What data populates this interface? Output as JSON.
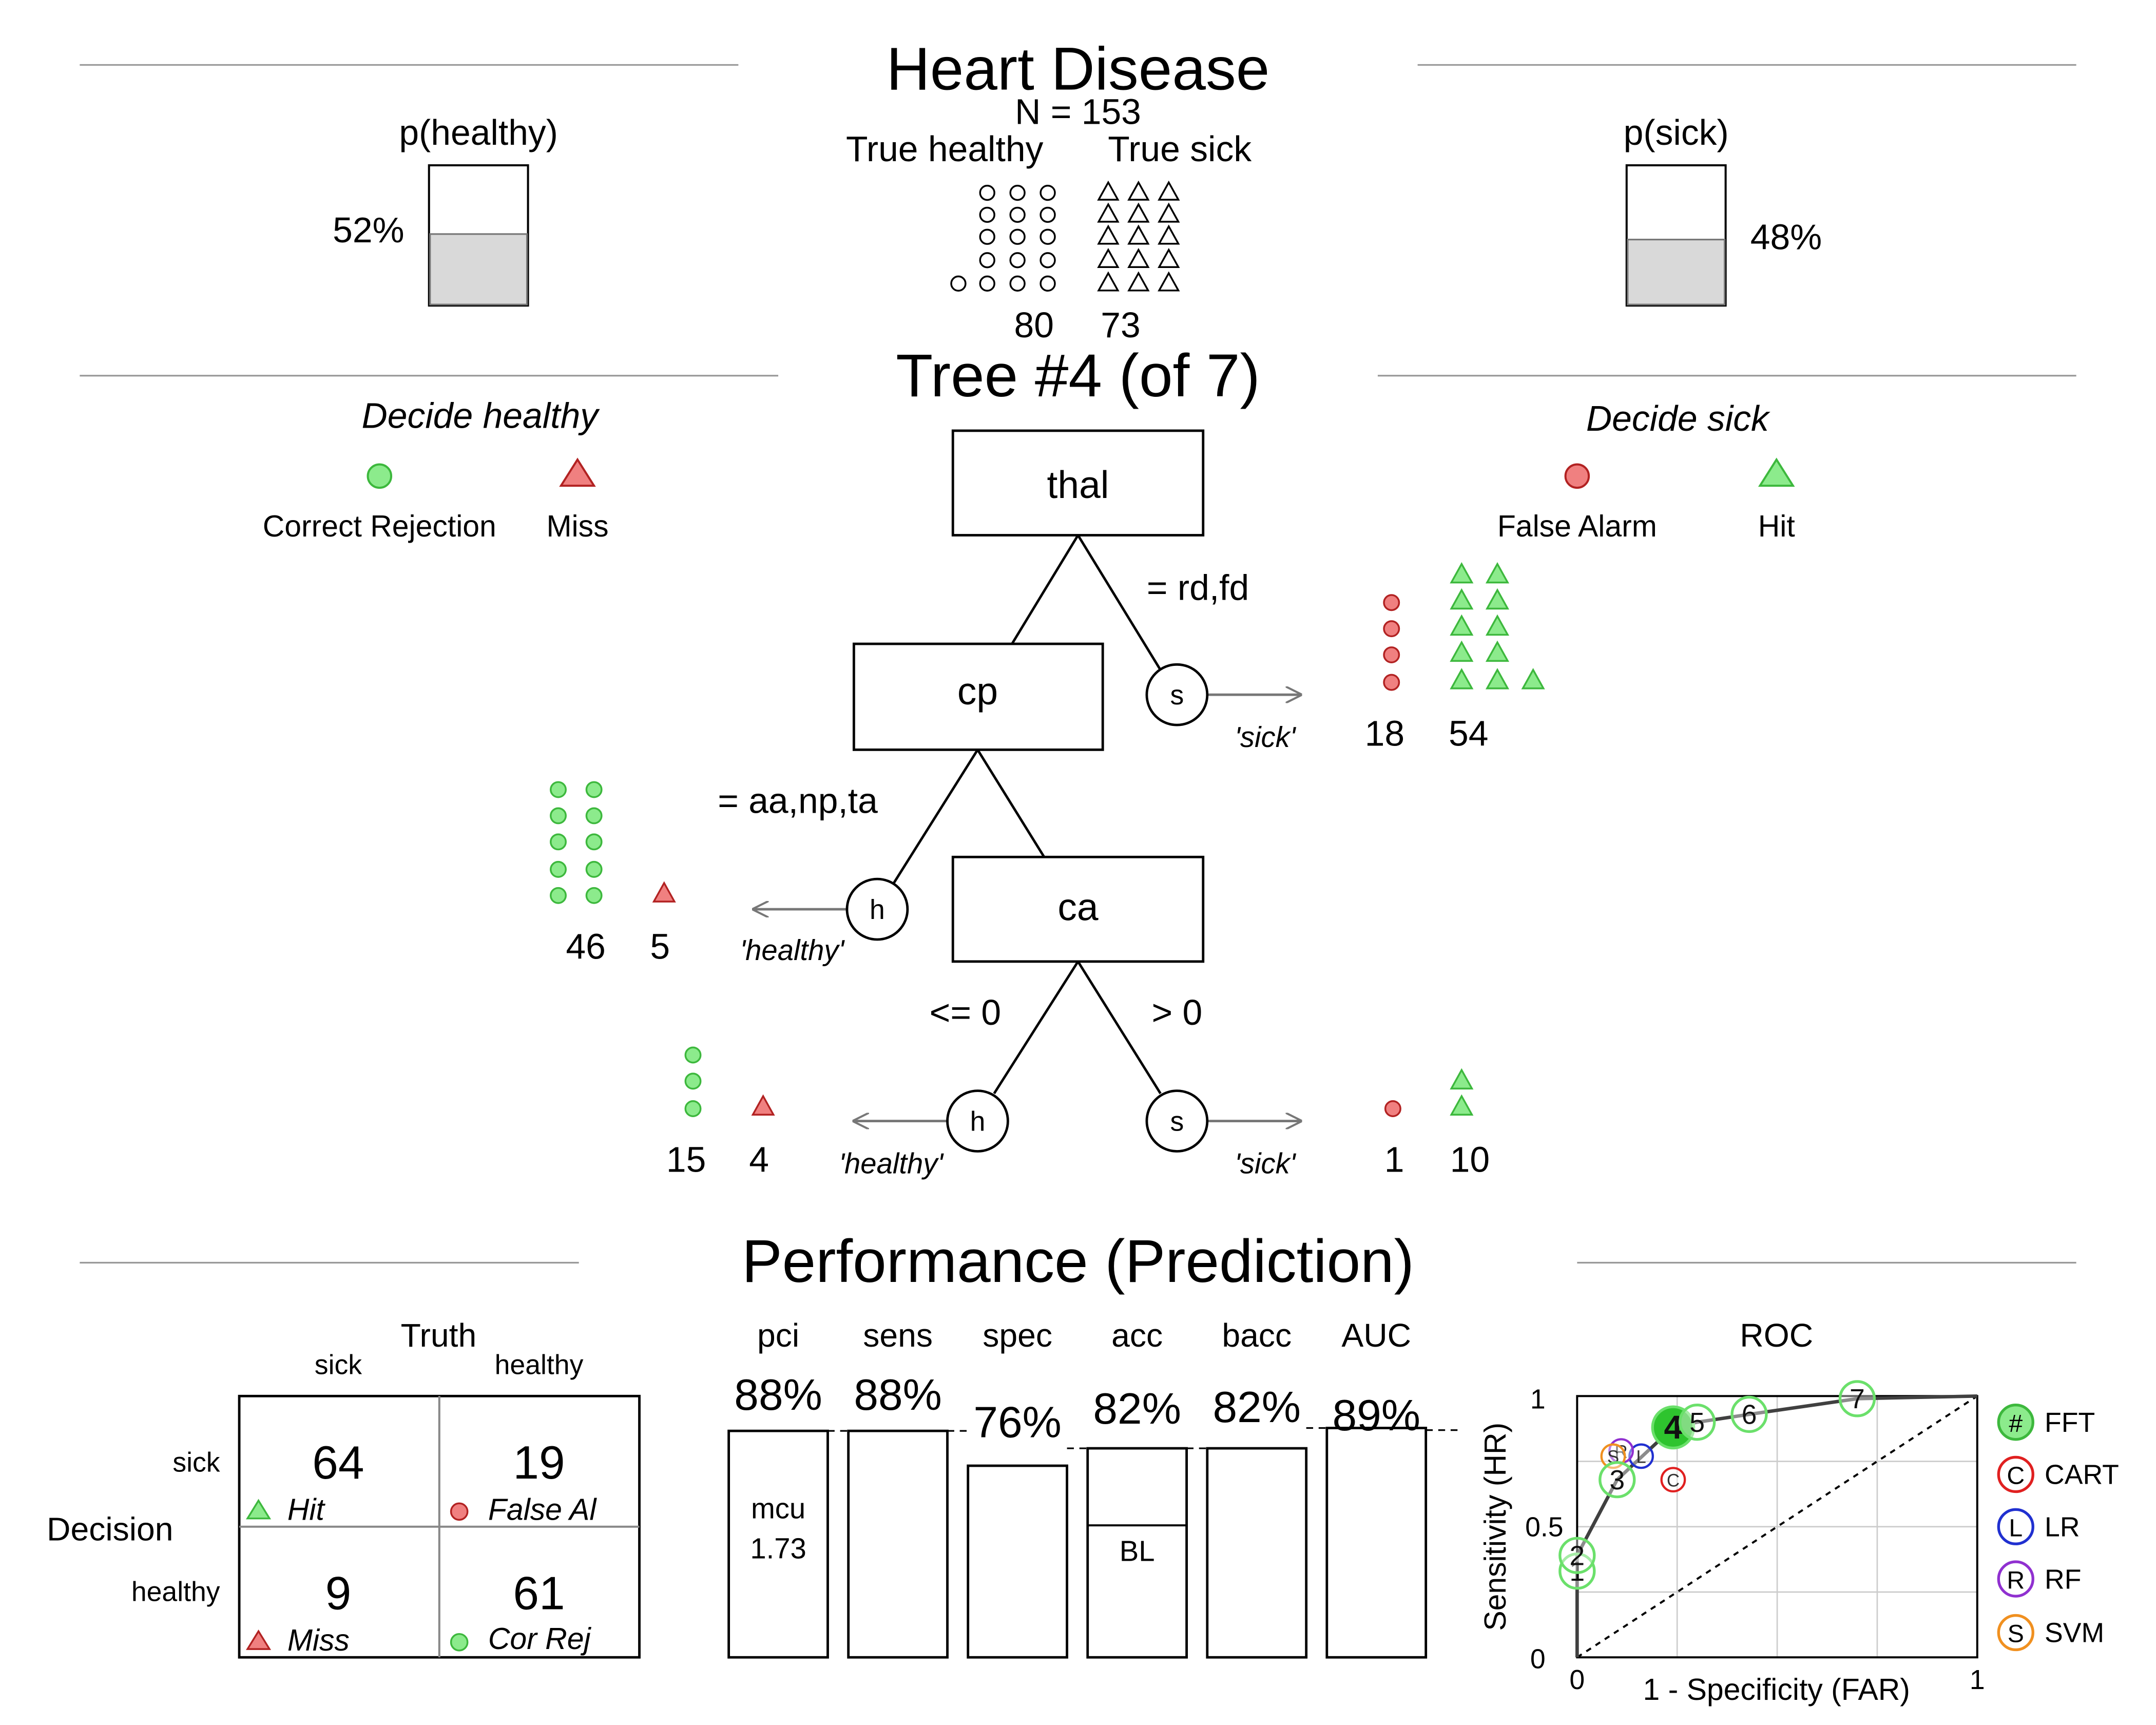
{
  "header": {
    "title": "Heart Disease",
    "n_label": "N = 153",
    "true_healthy_label": "True healthy",
    "true_sick_label": "True sick",
    "p_healthy_label": "p(healthy)",
    "p_sick_label": "p(sick)",
    "p_healthy_text": "52%",
    "p_sick_text": "48%",
    "count_healthy_text": "80",
    "count_sick_text": "73"
  },
  "tree": {
    "title": "Tree #4 (of 7)",
    "decide_healthy_label": "Decide healthy",
    "decide_sick_label": "Decide sick",
    "legend": {
      "correct_rejection": "Correct Rejection",
      "miss": "Miss",
      "false_alarm": "False Alarm",
      "hit": "Hit"
    },
    "nodes": {
      "thal": "thal",
      "cp": "cp",
      "ca": "ca"
    },
    "cues": {
      "thal_rule": "= rd,fd",
      "cp_rule": "= aa,np,ta",
      "ca_left_rule": "<= 0",
      "ca_right_rule": "> 0"
    },
    "leaf_letters": {
      "sick": "s",
      "healthy": "h"
    },
    "exit_labels": {
      "sick": "'sick'",
      "healthy": "'healthy'"
    },
    "exit_counts": {
      "thal_sick_fa": "18",
      "thal_sick_hit": "54",
      "cp_healthy_cr": "46",
      "cp_healthy_miss": "5",
      "ca_healthy_cr": "15",
      "ca_healthy_miss": "4",
      "ca_sick_fa": "1",
      "ca_sick_hit": "10"
    }
  },
  "performance": {
    "title": "Performance (Prediction)",
    "matrix": {
      "truth_label": "Truth",
      "decision_label": "Decision",
      "col_sick": "sick",
      "col_healthy": "healthy",
      "row_sick": "sick",
      "row_healthy": "healthy",
      "hit_count": "64",
      "hit_label": "Hit",
      "fa_count": "19",
      "fa_label": "False Al",
      "miss_count": "9",
      "miss_label": "Miss",
      "cr_count": "61",
      "cr_label": "Cor Rej"
    },
    "metrics": {
      "pci_label": "pci",
      "sens_label": "sens",
      "spec_label": "spec",
      "acc_label": "acc",
      "bacc_label": "bacc",
      "auc_label": "AUC",
      "pci_text": "88%",
      "sens_text": "88%",
      "spec_text": "76%",
      "acc_text": "82%",
      "bacc_text": "82%",
      "auc_text": "89%",
      "mcu_label": "mcu",
      "mcu_value": "1.73",
      "bl_label": "BL"
    },
    "roc": {
      "title": "ROC",
      "xlabel": "1 - Specificity (FAR)",
      "ylabel": "Sensitivity (HR)",
      "tick_0": "0",
      "tick_1": "1",
      "tick_05": "0.5",
      "legend": {
        "fft_symbol": "#",
        "fft_label": "FFT",
        "cart_symbol": "C",
        "cart_label": "CART",
        "lr_symbol": "L",
        "lr_label": "LR",
        "rf_symbol": "R",
        "rf_label": "RF",
        "svm_symbol": "S",
        "svm_label": "SVM"
      }
    }
  },
  "colors": {
    "green": "#8CEB8C",
    "green_stroke": "#3DB83D",
    "green_dark": "#2EC42E",
    "red": "#F08080",
    "red_stroke": "#B22222",
    "cart": "#E02020",
    "lr": "#2030D0",
    "rf": "#9030D0",
    "svm": "#F09020",
    "grey_fill": "#D9D9D9"
  },
  "chart_data": {
    "type": "roc",
    "fft_points": [
      {
        "label": "1",
        "far": 0.0,
        "hr": 0.33
      },
      {
        "label": "2",
        "far": 0.0,
        "hr": 0.39
      },
      {
        "label": "3",
        "far": 0.1,
        "hr": 0.68
      },
      {
        "label": "4",
        "far": 0.24,
        "hr": 0.88
      },
      {
        "label": "5",
        "far": 0.3,
        "hr": 0.9
      },
      {
        "label": "6",
        "far": 0.43,
        "hr": 0.93
      },
      {
        "label": "7",
        "far": 0.7,
        "hr": 0.99
      }
    ],
    "selected_tree": "4",
    "models": [
      {
        "name": "CART",
        "symbol": "C",
        "far": 0.24,
        "hr": 0.68
      },
      {
        "name": "LR",
        "symbol": "L",
        "far": 0.16,
        "hr": 0.77
      },
      {
        "name": "RF",
        "symbol": "R",
        "far": 0.11,
        "hr": 0.79
      },
      {
        "name": "SVM",
        "symbol": "S",
        "far": 0.09,
        "hr": 0.77
      }
    ],
    "xlim": [
      0,
      1
    ],
    "ylim": [
      0,
      1
    ],
    "metrics": [
      {
        "name": "pci",
        "value": 0.88
      },
      {
        "name": "sens",
        "value": 0.88
      },
      {
        "name": "spec",
        "value": 0.76
      },
      {
        "name": "acc",
        "value": 0.82
      },
      {
        "name": "bacc",
        "value": 0.82
      },
      {
        "name": "AUC",
        "value": 0.89
      }
    ],
    "acc_baseline": 0.52,
    "p_healthy": 0.52,
    "p_sick": 0.48,
    "true_healthy_count": 80,
    "true_sick_count": 73,
    "exits": [
      {
        "node": "thal",
        "decision": "sick",
        "false_alarm": 18,
        "hit": 54
      },
      {
        "node": "cp",
        "decision": "healthy",
        "correct_rejection": 46,
        "miss": 5
      },
      {
        "node": "ca",
        "decision": "healthy",
        "correct_rejection": 15,
        "miss": 4
      },
      {
        "node": "ca",
        "decision": "sick",
        "false_alarm": 1,
        "hit": 10
      }
    ],
    "confusion_matrix": {
      "hit": 64,
      "false_alarm": 19,
      "miss": 9,
      "correct_rejection": 61
    }
  }
}
